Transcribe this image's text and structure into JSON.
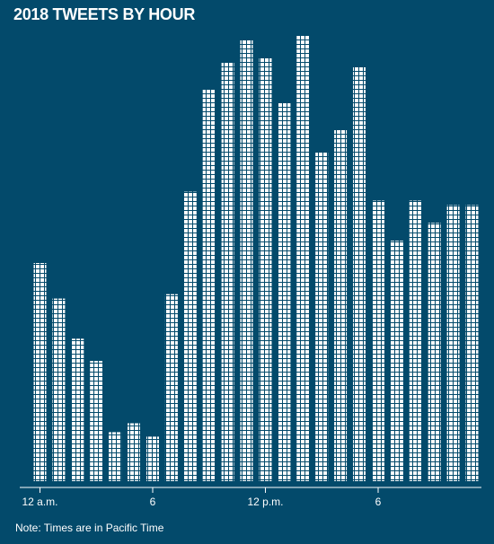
{
  "title": "2018 TWEETS BY HOUR",
  "note": "Note: Times are in Pacific Time",
  "colors": {
    "background": "#034a6b",
    "bar": "#ffffff",
    "axis": "#ffffff"
  },
  "chart_data": {
    "type": "bar",
    "title": "2018 TWEETS BY HOUR",
    "xlabel": "",
    "ylabel": "",
    "grid": false,
    "legend": "none",
    "categories": [
      "0",
      "1",
      "2",
      "3",
      "4",
      "5",
      "6",
      "7",
      "8",
      "9",
      "10",
      "11",
      "12",
      "13",
      "14",
      "15",
      "16",
      "17",
      "18",
      "19",
      "20",
      "21",
      "22",
      "23"
    ],
    "tick_labels": [
      {
        "category": "0",
        "label": "12 a.m."
      },
      {
        "category": "6",
        "label": "6"
      },
      {
        "category": "12",
        "label": "12 p.m."
      },
      {
        "category": "18",
        "label": "6"
      }
    ],
    "series": [
      {
        "values": [
          49,
          41,
          32,
          27,
          11,
          13,
          10,
          42,
          65,
          88,
          94,
          99,
          95,
          85,
          100,
          74,
          79,
          93,
          63,
          54,
          63,
          58,
          62,
          62
        ]
      }
    ],
    "ylim": [
      0,
      100
    ]
  }
}
